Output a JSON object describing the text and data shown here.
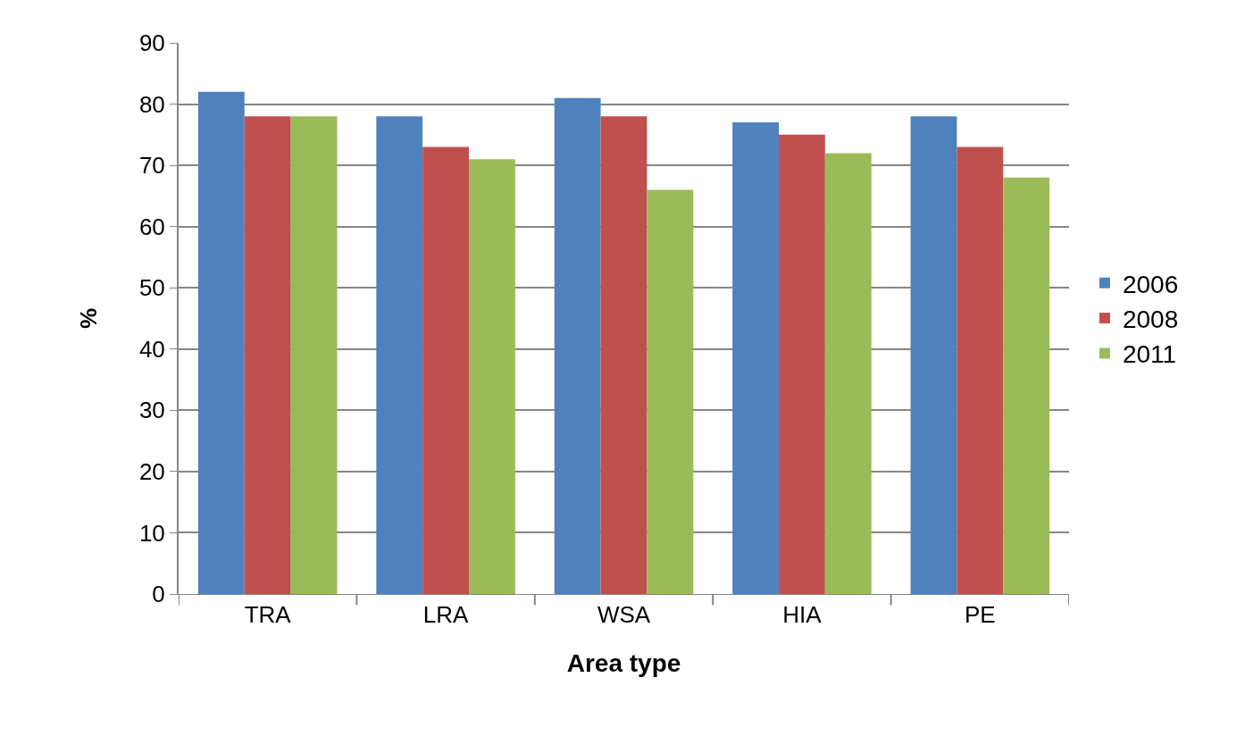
{
  "chart_data": {
    "type": "bar",
    "xlabel": "Area type",
    "ylabel": "%",
    "categories": [
      "TRA",
      "LRA",
      "WSA",
      "HIA",
      "PE"
    ],
    "series": [
      {
        "name": "2006",
        "color": "#4f81bd",
        "values": [
          82,
          78,
          81,
          77,
          78
        ]
      },
      {
        "name": "2008",
        "color": "#c0504d",
        "values": [
          78,
          73,
          78,
          75,
          73
        ]
      },
      {
        "name": "2011",
        "color": "#9bbb59",
        "values": [
          78,
          71,
          66,
          72,
          68
        ]
      }
    ],
    "ylim": [
      0,
      90
    ],
    "yticks": [
      0,
      10,
      20,
      30,
      40,
      50,
      60,
      70,
      80,
      90
    ],
    "grid": "y",
    "legend": "right"
  }
}
